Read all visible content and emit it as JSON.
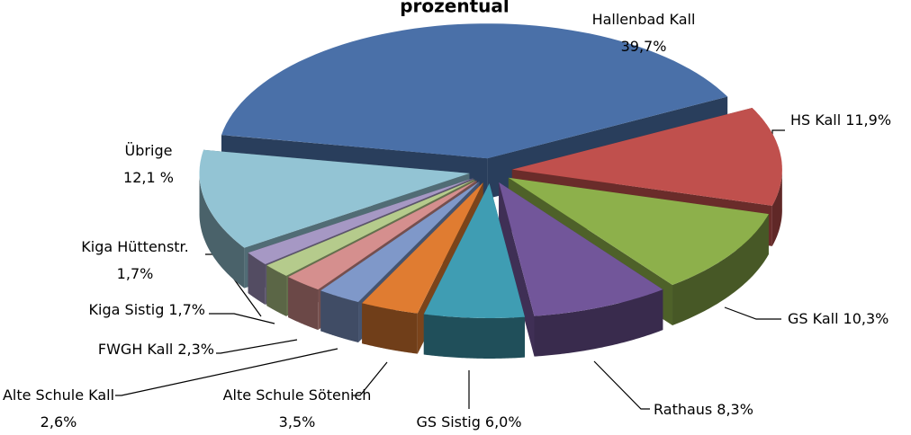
{
  "chart_data": {
    "type": "pie3d",
    "title": "prozentual",
    "categories": [
      "Hallenbad Kall",
      "HS Kall",
      "GS Kall",
      "Rathaus",
      "GS Sistig",
      "Alte Schule Sötenich",
      "Alte Schule Kall",
      "FWGH Kall",
      "Kiga Sistig",
      "Kiga Hüttenstr.",
      "Übrige"
    ],
    "values": [
      39.7,
      11.9,
      10.3,
      8.3,
      6.0,
      3.5,
      2.6,
      2.3,
      1.7,
      1.7,
      12.1
    ],
    "value_labels": [
      "39,7%",
      "11,9%",
      "10,3%",
      "8,3%",
      "6,0%",
      "3,5%",
      "2,6%",
      "2,3%",
      "1,7%",
      "1,7%",
      "12,1 %"
    ],
    "colors": [
      "#4a70a8",
      "#c0504d",
      "#8db04b",
      "#72569a",
      "#3f9db3",
      "#e07c31",
      "#7f98c9",
      "#d58f8e",
      "#b5cb8c",
      "#a698c4",
      "#93c4d4"
    ]
  }
}
